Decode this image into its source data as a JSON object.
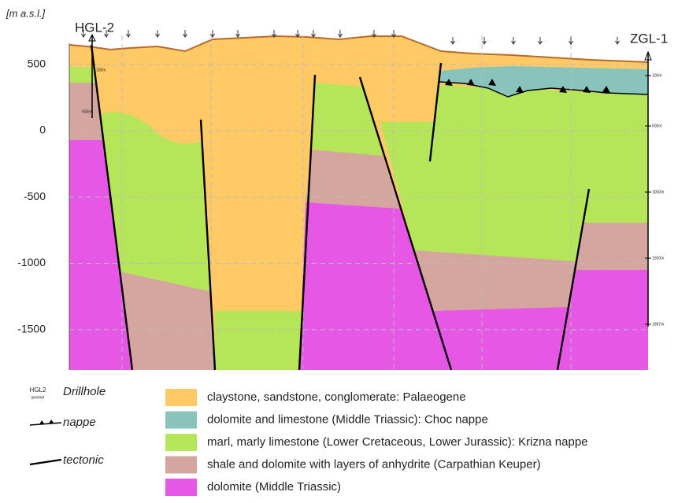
{
  "section": {
    "unit_label": "[m a.s.l.]",
    "left_drillhole": "HGL-2",
    "right_drillhole": "ZGL-1",
    "left_depth_labels": [
      "100m",
      "500m"
    ],
    "right_depth_labels": [
      "100m",
      "500m",
      "1000m",
      "1500m",
      "1987m"
    ],
    "y_axis": {
      "ticks": [
        500,
        0,
        -500,
        -1000,
        -1500
      ]
    }
  },
  "legend": {
    "symbols": {
      "drillhole_code": "HGL2",
      "drillhole_note": "priemet",
      "drillhole": "Drillhole",
      "nappe": "nappe",
      "tectonic": "tectonic"
    },
    "units": [
      {
        "label": "claystone, sandstone, conglomerate: Palaeogene",
        "color": "#ffc966"
      },
      {
        "label": "dolomite and limestone (Middle Triassic): Choc nappe",
        "color": "#88c4bc"
      },
      {
        "label": "marl, marly limestone (Lower Cretaceous, Lower Jurassic): Krizna nappe",
        "color": "#b5e65a"
      },
      {
        "label": "shale and dolomite with layers of anhydrite (Carpathian Keuper)",
        "color": "#d4a69f"
      },
      {
        "label": "dolomite (Middle Triassic)",
        "color": "#e657e6"
      }
    ]
  }
}
